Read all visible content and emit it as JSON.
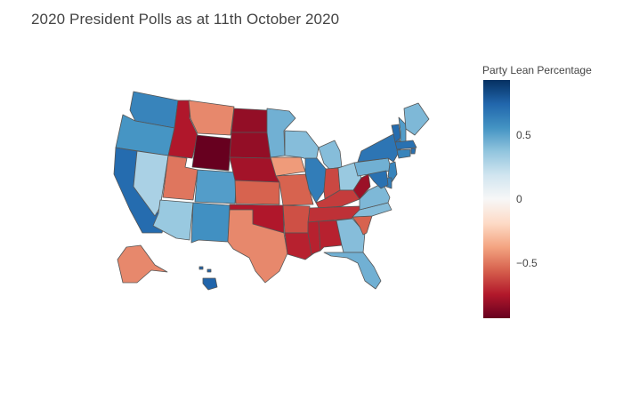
{
  "title": "2020 President Polls as at 11th October 2020",
  "colorbar": {
    "title": "Party Lean Percentage",
    "ticks": [
      {
        "label": "0.5",
        "value": 0.5
      },
      {
        "label": "0",
        "value": 0
      },
      {
        "label": "−0.5",
        "value": -0.5
      }
    ],
    "range": [
      -0.93,
      0.93
    ],
    "colors": [
      "#67001f",
      "#b2182b",
      "#d6604d",
      "#f4a582",
      "#fddbc7",
      "#f7f7f7",
      "#d1e5f0",
      "#92c5de",
      "#4393c3",
      "#2166ac",
      "#053061"
    ]
  },
  "states": {
    "WA": 0.62,
    "OR": 0.55,
    "CA": 0.72,
    "NV": 0.3,
    "ID": -0.75,
    "MT": -0.45,
    "WY": -0.93,
    "UT": -0.5,
    "AZ": 0.35,
    "CO": 0.52,
    "NM": 0.57,
    "ND": -0.82,
    "SD": -0.82,
    "NE": -0.78,
    "KS": -0.55,
    "OK": -0.75,
    "TX": -0.45,
    "MN": 0.45,
    "IA": -0.4,
    "MO": -0.55,
    "AR": -0.6,
    "LA": -0.72,
    "WI": 0.4,
    "IL": 0.65,
    "MI": 0.4,
    "IN": -0.62,
    "OH": 0.35,
    "KY": -0.65,
    "TN": -0.68,
    "MS": -0.72,
    "AL": -0.72,
    "GA": 0.4,
    "FL": 0.45,
    "SC": -0.55,
    "NC": 0.4,
    "VA": 0.42,
    "WV": -0.8,
    "PA": 0.45,
    "NY": 0.68,
    "VT": 0.72,
    "NH": 0.52,
    "ME": 0.42,
    "MA": 0.7,
    "RI": 0.7,
    "CT": 0.62,
    "NJ": 0.62,
    "DE": 0.65,
    "MD": 0.7,
    "AK": -0.45,
    "HI": 0.75
  }
}
